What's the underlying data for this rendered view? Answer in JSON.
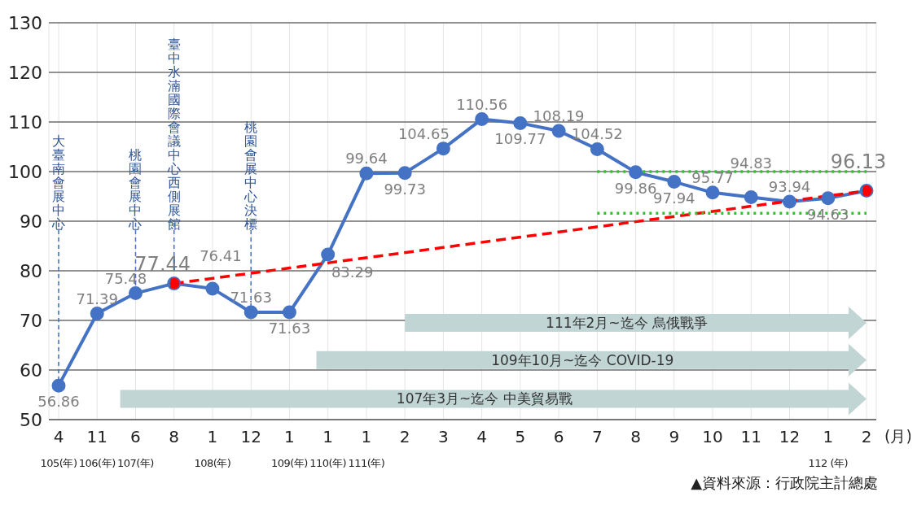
{
  "chart_data": {
    "type": "line",
    "xlabel": "(月)",
    "categories": [
      "4\n105(年)",
      "11\n106(年)",
      "6\n107(年)",
      "8",
      "1\n108(年)",
      "12",
      "1\n109(年)",
      "1\n110(年)",
      "1\n111(年)",
      "2",
      "3",
      "4",
      "5",
      "6",
      "7",
      "8",
      "9",
      "10",
      "11",
      "12",
      "1\n112 (年)",
      "2"
    ],
    "series": [
      {
        "color": "#4472c4",
        "marker": "circle",
        "line_style": "solid",
        "values": [
          56.86,
          71.39,
          75.48,
          77.44,
          76.41,
          71.63,
          71.63,
          83.29,
          99.64,
          99.73,
          104.65,
          110.56,
          109.77,
          108.19,
          104.52,
          99.86,
          97.94,
          95.77,
          94.83,
          93.94,
          94.63,
          96.13
        ],
        "value_labels": [
          "56.86",
          "71.39",
          "75.48",
          null,
          "76.41",
          "71.63",
          "71.63",
          "83.29",
          "99.64",
          "99.73",
          "104.65",
          "110.56",
          "109.77",
          "108.19",
          "104.52",
          "99.86",
          "97.94",
          "95.77",
          "94.83",
          "93.94",
          "94.63",
          null
        ]
      },
      {
        "color": "#ff0000",
        "marker": "circle",
        "line_style": "dashed",
        "values": [
          null,
          null,
          null,
          77.44,
          null,
          null,
          null,
          null,
          null,
          null,
          null,
          null,
          null,
          null,
          null,
          null,
          null,
          null,
          null,
          null,
          null,
          96.13
        ],
        "value_labels": [
          null,
          null,
          null,
          "77.44",
          null,
          null,
          null,
          null,
          null,
          null,
          null,
          null,
          null,
          null,
          null,
          null,
          null,
          null,
          null,
          null,
          null,
          "96.13"
        ]
      },
      {
        "color": "#22cc22",
        "marker": "none",
        "line_style": "dotted",
        "values": [
          null,
          null,
          null,
          null,
          null,
          null,
          null,
          null,
          null,
          null,
          null,
          null,
          null,
          null,
          100,
          null,
          null,
          null,
          null,
          null,
          null,
          100
        ]
      },
      {
        "color": "#22cc22",
        "marker": "none",
        "line_style": "dotted",
        "values": [
          null,
          null,
          null,
          null,
          null,
          null,
          null,
          null,
          null,
          null,
          null,
          null,
          null,
          null,
          91.6,
          null,
          null,
          null,
          null,
          null,
          null,
          91.6
        ]
      }
    ],
    "ylim": [
      50,
      130
    ],
    "yticks": [
      50,
      60,
      70,
      80,
      90,
      100,
      110,
      120,
      130
    ],
    "grid": true,
    "legend": false,
    "annotations": [
      {
        "text": "大臺南會展中心",
        "x": "4\n105(年)",
        "y": 56.86
      },
      {
        "text": "桃園會展中心",
        "x": "6\n107(年)",
        "y": 75.48
      },
      "臺中水湳國際會議中心西側展館",
      {
        "text": "桃園會展中心決標",
        "x": "12",
        "y": 71.63
      },
      "111年2月~迄今 烏俄戰爭",
      "109年10月~迄今 COVID-19",
      "107年3月~迄今 中美貿易戰",
      "▲資料來源：行政院主計總處"
    ]
  }
}
